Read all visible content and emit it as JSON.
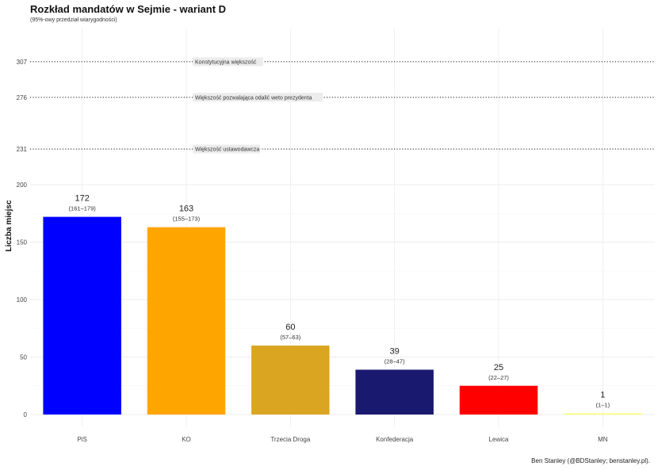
{
  "header": {
    "title": "Rozkład mandatów w Sejmie - wariant D",
    "subtitle": "(95%-owy przedział wiarygodności)"
  },
  "footer": {
    "caption": "Ben Stanley (@BDStanley; benstanley.pl)."
  },
  "chart_data": {
    "type": "bar",
    "title": "Rozkład mandatów w Sejmie - wariant D",
    "subtitle": "(95%-owy przedział wiarygodności)",
    "xlabel": "",
    "ylabel": "Liczba miejsc",
    "categories": [
      "PiS",
      "KO",
      "Trzecia Droga",
      "Konfederacja",
      "Lewica",
      "MN"
    ],
    "values": [
      172,
      163,
      60,
      39,
      25,
      1
    ],
    "intervals": [
      "(161–179)",
      "(155–173)",
      "(57–63)",
      "(28–47)",
      "(22–27)",
      "(1–1)"
    ],
    "colors": [
      "#0000ff",
      "#ffa500",
      "#daa520",
      "#191970",
      "#ff0000",
      "#ffff66"
    ],
    "ylim": [
      0,
      320
    ],
    "yticks": [
      0,
      50,
      100,
      150,
      200
    ],
    "grid": true,
    "thresholds": [
      {
        "value": 307,
        "label": "Konstytucyjna większość"
      },
      {
        "value": 276,
        "label": "Większość pozwalająca odalić weto prezydenta"
      },
      {
        "value": 231,
        "label": "Większość ustawodawcza"
      }
    ]
  }
}
